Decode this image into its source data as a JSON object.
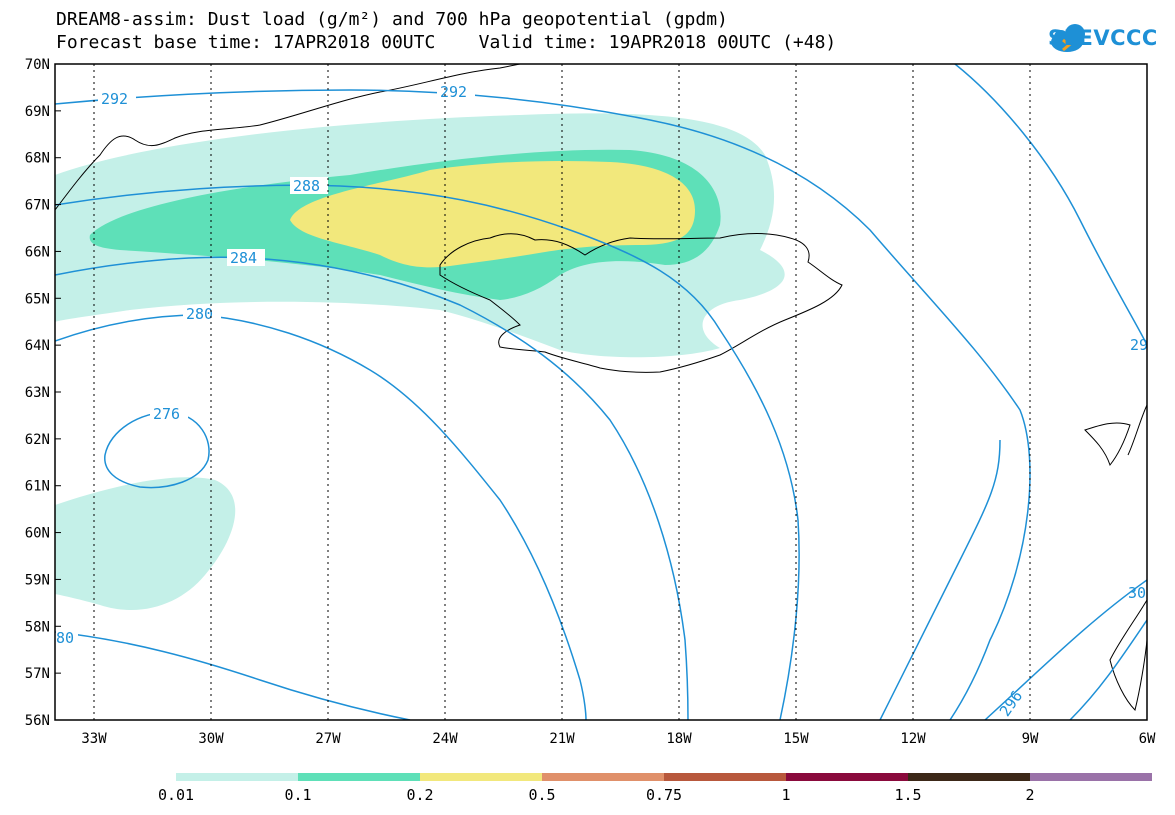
{
  "header": {
    "title_line1": "DREAM8-assim: Dust load (g/m²) and 700 hPa geopotential (gpdm)",
    "title_line2": "Forecast base time: 17APR2018 00UTC    Valid time: 19APR2018 00UTC (+48)"
  },
  "logo": {
    "text": "SEEVCCC",
    "icon": "cloud-icon"
  },
  "map": {
    "lat_labels": [
      "70N",
      "69N",
      "68N",
      "67N",
      "66N",
      "65N",
      "64N",
      "63N",
      "62N",
      "61N",
      "60N",
      "59N",
      "58N",
      "57N",
      "56N"
    ],
    "lon_labels": [
      "33W",
      "30W",
      "27W",
      "24W",
      "21W",
      "18W",
      "15W",
      "12W",
      "9W",
      "6W"
    ],
    "contour_labels": [
      "292",
      "292",
      "288",
      "284",
      "280",
      "276",
      "80",
      "296",
      "29",
      "30"
    ],
    "contour_color": "#1e90d6"
  },
  "colorbar": {
    "labels": [
      "0.01",
      "0.1",
      "0.2",
      "0.5",
      "0.75",
      "1",
      "1.5",
      "2"
    ],
    "colors": [
      "#c4f0e8",
      "#5ee0b8",
      "#f2e87c",
      "#e0906a",
      "#b8583c",
      "#8a0a3c",
      "#3c2818",
      "#9a72a8"
    ]
  }
}
